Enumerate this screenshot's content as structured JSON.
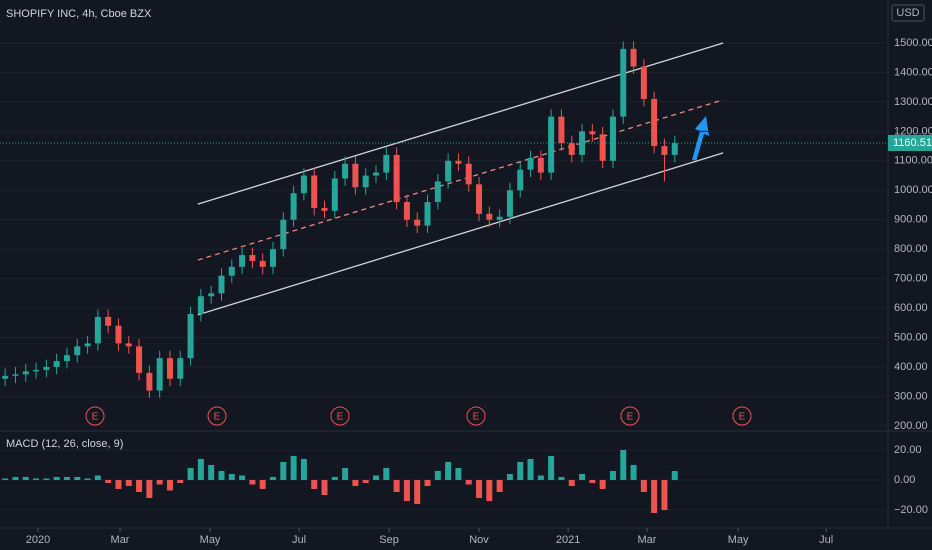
{
  "chart_data": [
    {
      "type": "candlestick",
      "title": "SHOPIFY INC, 4h, Cboe BZX",
      "currency": "USD",
      "up_color": "#26a69a",
      "down_color": "#ef5350",
      "open": [
        360,
        370,
        375,
        385,
        390,
        400,
        420,
        440,
        470,
        480,
        570,
        540,
        480,
        470,
        380,
        320,
        430,
        360,
        430,
        580,
        640,
        650,
        710,
        740,
        780,
        760,
        740,
        800,
        900,
        990,
        1050,
        940,
        930,
        1040,
        1090,
        1010,
        1050,
        1060,
        1120,
        960,
        900,
        880,
        960,
        1030,
        1100,
        1090,
        1020,
        920,
        900,
        910,
        1000,
        1070,
        1110,
        1060,
        1250,
        1160,
        1120,
        1200,
        1190,
        1100,
        1250,
        1480,
        1420,
        1310,
        1150,
        1120
      ],
      "high": [
        395,
        400,
        410,
        415,
        425,
        445,
        465,
        495,
        505,
        595,
        595,
        565,
        505,
        495,
        405,
        455,
        455,
        455,
        605,
        665,
        675,
        735,
        765,
        805,
        805,
        785,
        825,
        925,
        1015,
        1075,
        1075,
        965,
        1065,
        1115,
        1115,
        1075,
        1085,
        1145,
        1145,
        985,
        925,
        985,
        1055,
        1125,
        1125,
        1115,
        1045,
        945,
        935,
        1025,
        1095,
        1135,
        1135,
        1275,
        1275,
        1185,
        1225,
        1225,
        1215,
        1275,
        1505,
        1505,
        1445,
        1335,
        1175,
        1185
      ],
      "low": [
        335,
        345,
        350,
        360,
        365,
        375,
        395,
        415,
        445,
        455,
        515,
        455,
        445,
        355,
        295,
        295,
        335,
        335,
        405,
        555,
        615,
        625,
        685,
        715,
        735,
        715,
        715,
        775,
        875,
        965,
        915,
        905,
        905,
        1015,
        985,
        985,
        1025,
        1035,
        935,
        875,
        855,
        855,
        935,
        1005,
        1065,
        995,
        895,
        875,
        875,
        885,
        975,
        1045,
        1035,
        1035,
        1135,
        1095,
        1095,
        1165,
        1075,
        1075,
        1225,
        1395,
        1285,
        1125,
        1030,
        1095
      ],
      "close": [
        370,
        375,
        385,
        390,
        400,
        420,
        440,
        470,
        480,
        570,
        540,
        480,
        470,
        380,
        320,
        430,
        360,
        430,
        580,
        640,
        650,
        710,
        740,
        780,
        760,
        740,
        800,
        900,
        990,
        1050,
        940,
        930,
        1040,
        1090,
        1010,
        1050,
        1060,
        1120,
        960,
        900,
        880,
        960,
        1030,
        1100,
        1090,
        1020,
        920,
        900,
        910,
        1000,
        1070,
        1110,
        1060,
        1250,
        1160,
        1120,
        1200,
        1190,
        1100,
        1250,
        1480,
        1420,
        1310,
        1150,
        1120,
        1160
      ],
      "last_price": 1160.51,
      "xlim": [
        -0.5,
        85.7
      ],
      "ylim": [
        186,
        1646
      ],
      "yticks": [
        {
          "value": 200,
          "label": "200.00"
        },
        {
          "value": 300,
          "label": "300.00"
        },
        {
          "value": 400,
          "label": "400.00"
        },
        {
          "value": 500,
          "label": "500.00"
        },
        {
          "value": 600,
          "label": "600.00"
        },
        {
          "value": 700,
          "label": "700.00"
        },
        {
          "value": 800,
          "label": "800.00"
        },
        {
          "value": 900,
          "label": "900.00"
        },
        {
          "value": 1000,
          "label": "1000.00"
        },
        {
          "value": 1100,
          "label": "1100.00"
        },
        {
          "value": 1200,
          "label": "1200.00"
        },
        {
          "value": 1300,
          "label": "1300.00"
        },
        {
          "value": 1400,
          "label": "1400.00"
        },
        {
          "value": 1500,
          "label": "1500.00"
        }
      ],
      "trendlines": [
        {
          "x": [
            18.7,
            69.7
          ],
          "y": [
            953,
            1500
          ],
          "color": "#d1d4dc",
          "dashed": false
        },
        {
          "x": [
            18.7,
            69.7
          ],
          "y": [
            763,
            1307
          ],
          "color": "#ef8a80",
          "dashed": true
        },
        {
          "x": [
            18.7,
            69.7
          ],
          "y": [
            577,
            1127
          ],
          "color": "#d1d4dc",
          "dashed": false
        }
      ],
      "earnings_markers": [
        "E",
        "E",
        "E",
        "E",
        "E",
        "E"
      ]
    },
    {
      "type": "bar",
      "title": "MACD (12, 26, close, 9)",
      "up_color": "#26a69a",
      "down_color": "#ef5350",
      "values": [
        1,
        2,
        2,
        1,
        1,
        2,
        2,
        2,
        1,
        3,
        -2,
        -6,
        -4,
        -8,
        -12,
        -3,
        -7,
        -2,
        8,
        14,
        10,
        6,
        4,
        3,
        -3,
        -6,
        2,
        12,
        16,
        14,
        -6,
        -10,
        2,
        8,
        -4,
        -2,
        3,
        8,
        -8,
        -14,
        -16,
        -4,
        6,
        12,
        8,
        -3,
        -12,
        -14,
        -8,
        4,
        12,
        14,
        3,
        16,
        2,
        -4,
        4,
        -2,
        -6,
        6,
        20,
        10,
        -8,
        -22,
        -20,
        6
      ],
      "xlim": [
        -0.5,
        85.7
      ],
      "ylim": [
        -32,
        31.3
      ],
      "yticks": [
        {
          "value": 20,
          "label": "20.00"
        },
        {
          "value": 0,
          "label": "0.00"
        },
        {
          "value": -20,
          "label": "−20.00"
        }
      ],
      "xticks": [
        {
          "value": 3.19,
          "label": "2020"
        },
        {
          "value": 11.15,
          "label": "Mar"
        },
        {
          "value": 19.89,
          "label": "May"
        },
        {
          "value": 28.53,
          "label": "Jul"
        },
        {
          "value": 37.27,
          "label": "Sep"
        },
        {
          "value": 46.0,
          "label": "Nov"
        },
        {
          "value": 54.65,
          "label": "2021"
        },
        {
          "value": 62.3,
          "label": "Mar"
        },
        {
          "value": 71.15,
          "label": "May"
        },
        {
          "value": 79.7,
          "label": "Jul"
        }
      ]
    }
  ]
}
